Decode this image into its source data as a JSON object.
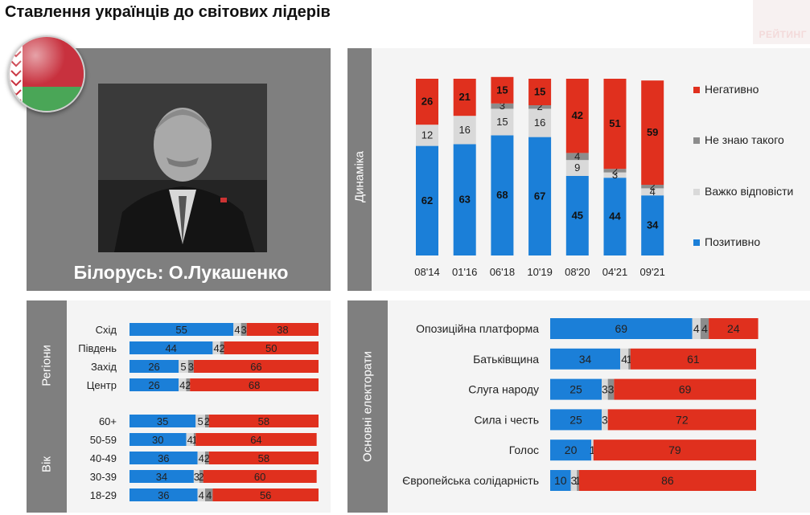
{
  "page": {
    "title": "Ставлення українців до світових лідерів",
    "logo_text": "РЕЙТИНГ",
    "subject_caption": "Білорусь: О.Лукашенко"
  },
  "colors": {
    "positive": "#1b7fd8",
    "hard_to_say": "#d9d9d9",
    "dont_know": "#8c8c8c",
    "negative": "#e0301e",
    "panel_dark": "#7f7f7f",
    "panel_light": "#f4f4f4"
  },
  "icons": {
    "flag": "belarus-flag-icon"
  },
  "chart_data": [
    {
      "type": "bar",
      "stacked": true,
      "orientation": "vertical",
      "panel_label": "Динаміка",
      "categories": [
        "08'14",
        "01'16",
        "06'18",
        "10'19",
        "08'20",
        "04'21",
        "09'21"
      ],
      "series": [
        {
          "name": "Позитивно",
          "color": "#1b7fd8",
          "values": [
            62,
            63,
            68,
            67,
            45,
            44,
            34
          ]
        },
        {
          "name": "Важко відповісти",
          "color": "#d9d9d9",
          "values": [
            12,
            16,
            15,
            16,
            9,
            3,
            4
          ]
        },
        {
          "name": "Не знаю такого",
          "color": "#8c8c8c",
          "values": [
            0,
            0,
            3,
            2,
            4,
            2,
            2
          ]
        },
        {
          "name": "Негативно",
          "color": "#e0301e",
          "values": [
            26,
            21,
            15,
            15,
            42,
            51,
            59
          ]
        }
      ],
      "legend": [
        "Негативно",
        "Не знаю такого",
        "Важко відповісти",
        "Позитивно"
      ],
      "legend_position": "right",
      "ylim": [
        0,
        100
      ]
    },
    {
      "type": "bar",
      "stacked": true,
      "orientation": "horizontal",
      "groups": [
        {
          "label": "Регіони",
          "categories": [
            "Схід",
            "Південь",
            "Захід",
            "Центр"
          ],
          "positive": [
            55,
            44,
            26,
            26
          ],
          "hard_to_say": [
            4,
            4,
            5,
            4
          ],
          "dont_know": [
            3,
            2,
            3,
            2
          ],
          "negative": [
            38,
            50,
            66,
            68
          ]
        },
        {
          "label": "Вік",
          "categories": [
            "60+",
            "50-59",
            "40-49",
            "30-39",
            "18-29"
          ],
          "positive": [
            35,
            30,
            36,
            34,
            36
          ],
          "hard_to_say": [
            5,
            4,
            4,
            3,
            4
          ],
          "dont_know": [
            2,
            1,
            2,
            2,
            4
          ],
          "negative": [
            58,
            64,
            58,
            60,
            56
          ]
        }
      ],
      "xlim": [
        0,
        100
      ]
    },
    {
      "type": "bar",
      "stacked": true,
      "orientation": "horizontal",
      "panel_label": "Основні електорати",
      "categories": [
        "Опозиційна платформа",
        "Батьківщина",
        "Слуга народу",
        "Сила і честь",
        "Голос",
        "Європейська солідарність"
      ],
      "positive": [
        69,
        34,
        25,
        25,
        20,
        10
      ],
      "hard_to_say": [
        4,
        4,
        3,
        3,
        1,
        3
      ],
      "dont_know": [
        4,
        1,
        3,
        0,
        0,
        1
      ],
      "negative": [
        24,
        61,
        69,
        72,
        79,
        86
      ],
      "xlim": [
        0,
        100
      ]
    }
  ]
}
